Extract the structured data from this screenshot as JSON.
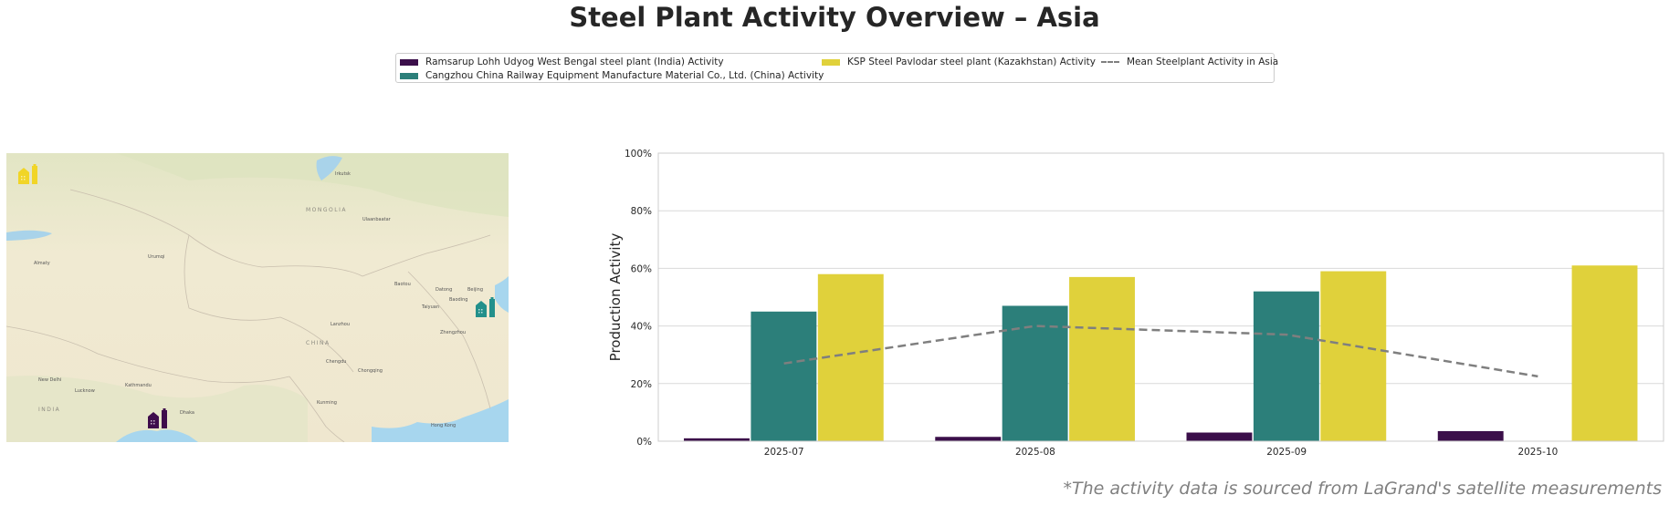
{
  "title": "Steel Plant Activity Overview – Asia",
  "footer": "*The activity data is sourced from LaGrand's satellite measurements",
  "legend": [
    {
      "label": "Ramsarup Lohh Udyog West Bengal steel plant (India) Activity",
      "color": "#3b0f4a",
      "kind": "bar"
    },
    {
      "label": "Cangzhou China Railway Equipment Manufacture Material Co., Ltd. (China) Activity",
      "color": "#2c7f7a",
      "kind": "bar"
    },
    {
      "label": "KSP Steel Pavlodar steel plant (Kazakhstan) Activity",
      "color": "#e0d13b",
      "kind": "bar"
    },
    {
      "label": "Mean Steelplant Activity in Asia",
      "color": "#7f7f7f",
      "kind": "dashed-line"
    }
  ],
  "map": {
    "labels": [
      "MONGOLIA",
      "CHINA",
      "INDIA",
      "Ulaanbaatar",
      "Irkutsk",
      "Urumqi",
      "Almaty",
      "Lanzhou",
      "Baotou",
      "Datong",
      "Beijing",
      "Baoding",
      "Taiyuan",
      "Zhengzhou",
      "Chengdu",
      "Chongqing",
      "Kunming",
      "New Delhi",
      "Lucknow",
      "Kathmandu",
      "Dhaka",
      "Hong Kong"
    ],
    "markers": [
      {
        "name": "KSP Steel Pavlodar",
        "color": "#f1d527"
      },
      {
        "name": "Cangzhou China Railway",
        "color": "#23908b"
      },
      {
        "name": "Ramsarup Lohh Udyog",
        "color": "#3e0c4c"
      }
    ]
  },
  "chart_data": {
    "type": "bar",
    "title": "",
    "xlabel": "",
    "ylabel": "Production Activity",
    "ylim": [
      0,
      100
    ],
    "yticks": [
      "0%",
      "20%",
      "40%",
      "60%",
      "80%",
      "100%"
    ],
    "grid": true,
    "legend_position": "top-center",
    "categories": [
      "2025-07",
      "2025-08",
      "2025-09",
      "2025-10"
    ],
    "series": [
      {
        "name": "Ramsarup Lohh Udyog West Bengal steel plant (India) Activity",
        "color": "#3b0f4a",
        "values": [
          1,
          1.5,
          3,
          3.5
        ]
      },
      {
        "name": "Cangzhou China Railway Equipment Manufacture Material Co., Ltd. (China) Activity",
        "color": "#2c7f7a",
        "values": [
          45,
          47,
          52,
          null
        ]
      },
      {
        "name": "KSP Steel Pavlodar steel plant (Kazakhstan) Activity",
        "color": "#e0d13b",
        "values": [
          58,
          57,
          59,
          61
        ]
      }
    ],
    "mean_line": {
      "name": "Mean Steelplant Activity in Asia",
      "color": "#7f7f7f",
      "values": [
        27,
        40,
        37,
        22.5
      ]
    }
  }
}
